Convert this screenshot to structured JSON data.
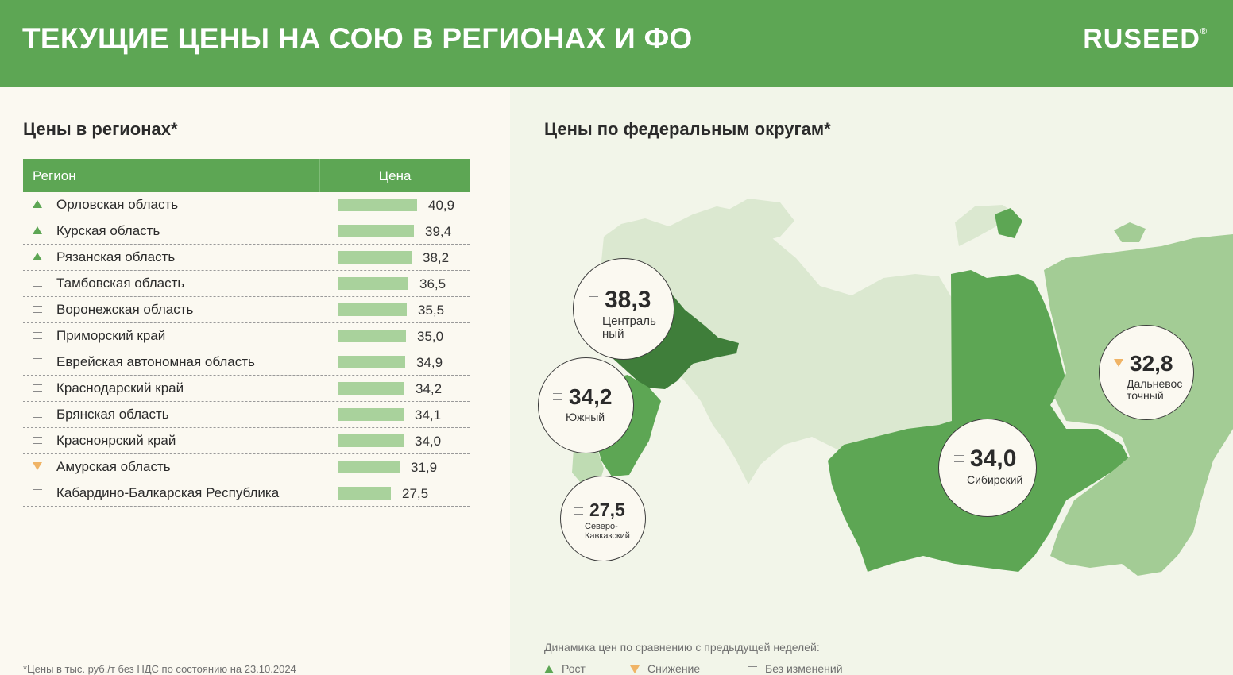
{
  "header": {
    "title": "ТЕКУЩИЕ ЦЕНЫ НА СОЮ В РЕГИОНАХ И ФО",
    "logo": "RUSEED",
    "logo_mark": "®"
  },
  "colors": {
    "header": "#5da654",
    "bar": "#a9d29c",
    "up": "#5da654",
    "down": "#f0b466",
    "same": "#8a8a8a"
  },
  "regions_section": {
    "title": "Цены в регионах*",
    "col_region": "Регион",
    "col_price": "Цена",
    "footnote": "*Цены в тыс. руб./т без НДС по состоянию на 23.10.2024"
  },
  "districts_section": {
    "title": "Цены по федеральным округам*",
    "legend_title": "Динамика цен по сравнению с предыдущей неделей:",
    "legend_up": "Рост",
    "legend_down": "Снижение",
    "legend_same": "Без изменений"
  },
  "chart_data": [
    {
      "type": "bar",
      "orientation": "horizontal",
      "categories": [
        "Орловская область",
        "Курская область",
        "Рязанская область",
        "Тамбовская область",
        "Воронежская область",
        "Приморский край",
        "Еврейская автономная область",
        "Краснодарский край",
        "Брянская область",
        "Красноярский край",
        "Амурская область",
        "Кабардино-Балкарская Республика"
      ],
      "values": [
        40.9,
        39.4,
        38.2,
        36.5,
        35.5,
        35.0,
        34.9,
        34.2,
        34.1,
        34.0,
        31.9,
        27.5
      ],
      "labels": [
        "40,9",
        "39,4",
        "38,2",
        "36,5",
        "35,5",
        "35,0",
        "34,9",
        "34,2",
        "34,1",
        "34,0",
        "31,9",
        "27,5"
      ],
      "trends": [
        "up",
        "up",
        "up",
        "same",
        "same",
        "same",
        "same",
        "same",
        "same",
        "same",
        "down",
        "same"
      ]
    },
    {
      "type": "map",
      "districts": [
        {
          "name": "Центральный",
          "line1": "Централь",
          "line2": "ный",
          "value": 38.3,
          "label": "38,3",
          "trend": "same"
        },
        {
          "name": "Южный",
          "line1": "Южный",
          "line2": "",
          "value": 34.2,
          "label": "34,2",
          "trend": "same"
        },
        {
          "name": "Северо-Кавказский",
          "line1": "Северо-",
          "line2": "Кавказский",
          "value": 27.5,
          "label": "27,5",
          "trend": "same"
        },
        {
          "name": "Сибирский",
          "line1": "Сибирский",
          "line2": "",
          "value": 34.0,
          "label": "34,0",
          "trend": "same"
        },
        {
          "name": "Дальневосточный",
          "line1": "Дальневос",
          "line2": "точный",
          "value": 32.8,
          "label": "32,8",
          "trend": "down"
        }
      ]
    }
  ]
}
